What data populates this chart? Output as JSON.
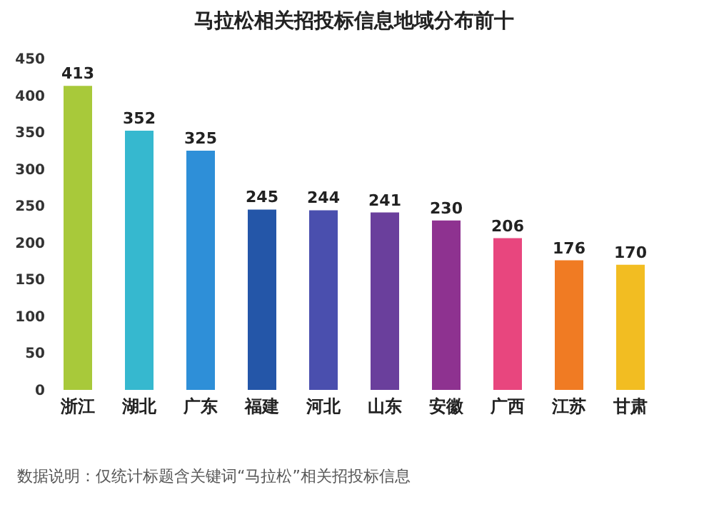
{
  "chart_data": {
    "type": "bar",
    "title": "马拉松相关招投标信息地域分布前十",
    "categories": [
      "浙江",
      "湖北",
      "广东",
      "福建",
      "河北",
      "山东",
      "安徽",
      "广西",
      "江苏",
      "甘肃"
    ],
    "values": [
      413,
      352,
      325,
      245,
      244,
      241,
      230,
      206,
      176,
      170
    ],
    "colors": [
      "#a8c93a",
      "#36b8cf",
      "#2e8fd8",
      "#2456a8",
      "#4a4fae",
      "#6a3f9c",
      "#8e3290",
      "#e8467e",
      "#f07b23",
      "#f2bd22"
    ],
    "ylim": [
      0,
      450
    ],
    "yticks": [
      0,
      50,
      100,
      150,
      200,
      250,
      300,
      350,
      400,
      450
    ],
    "data_labels": true,
    "annotations": [
      "数据说明：仅统计标题含关键词“马拉松”相关招投标信息"
    ]
  }
}
